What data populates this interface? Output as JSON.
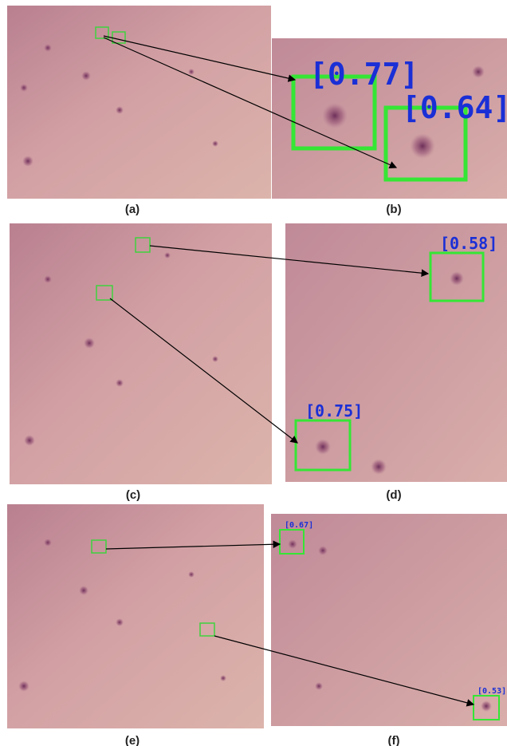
{
  "panels": [
    {
      "label": "(a)"
    },
    {
      "label": "(b)"
    },
    {
      "label": "(c)"
    },
    {
      "label": "(d)"
    },
    {
      "label": "(e)"
    },
    {
      "label": "(f)"
    }
  ],
  "detections": [
    {
      "score": "[0.77]"
    },
    {
      "score": "[0.64]"
    },
    {
      "score": "[0.58]"
    },
    {
      "score": "[0.75]"
    },
    {
      "score": "[0.67]"
    },
    {
      "score": "[0.53]"
    }
  ]
}
